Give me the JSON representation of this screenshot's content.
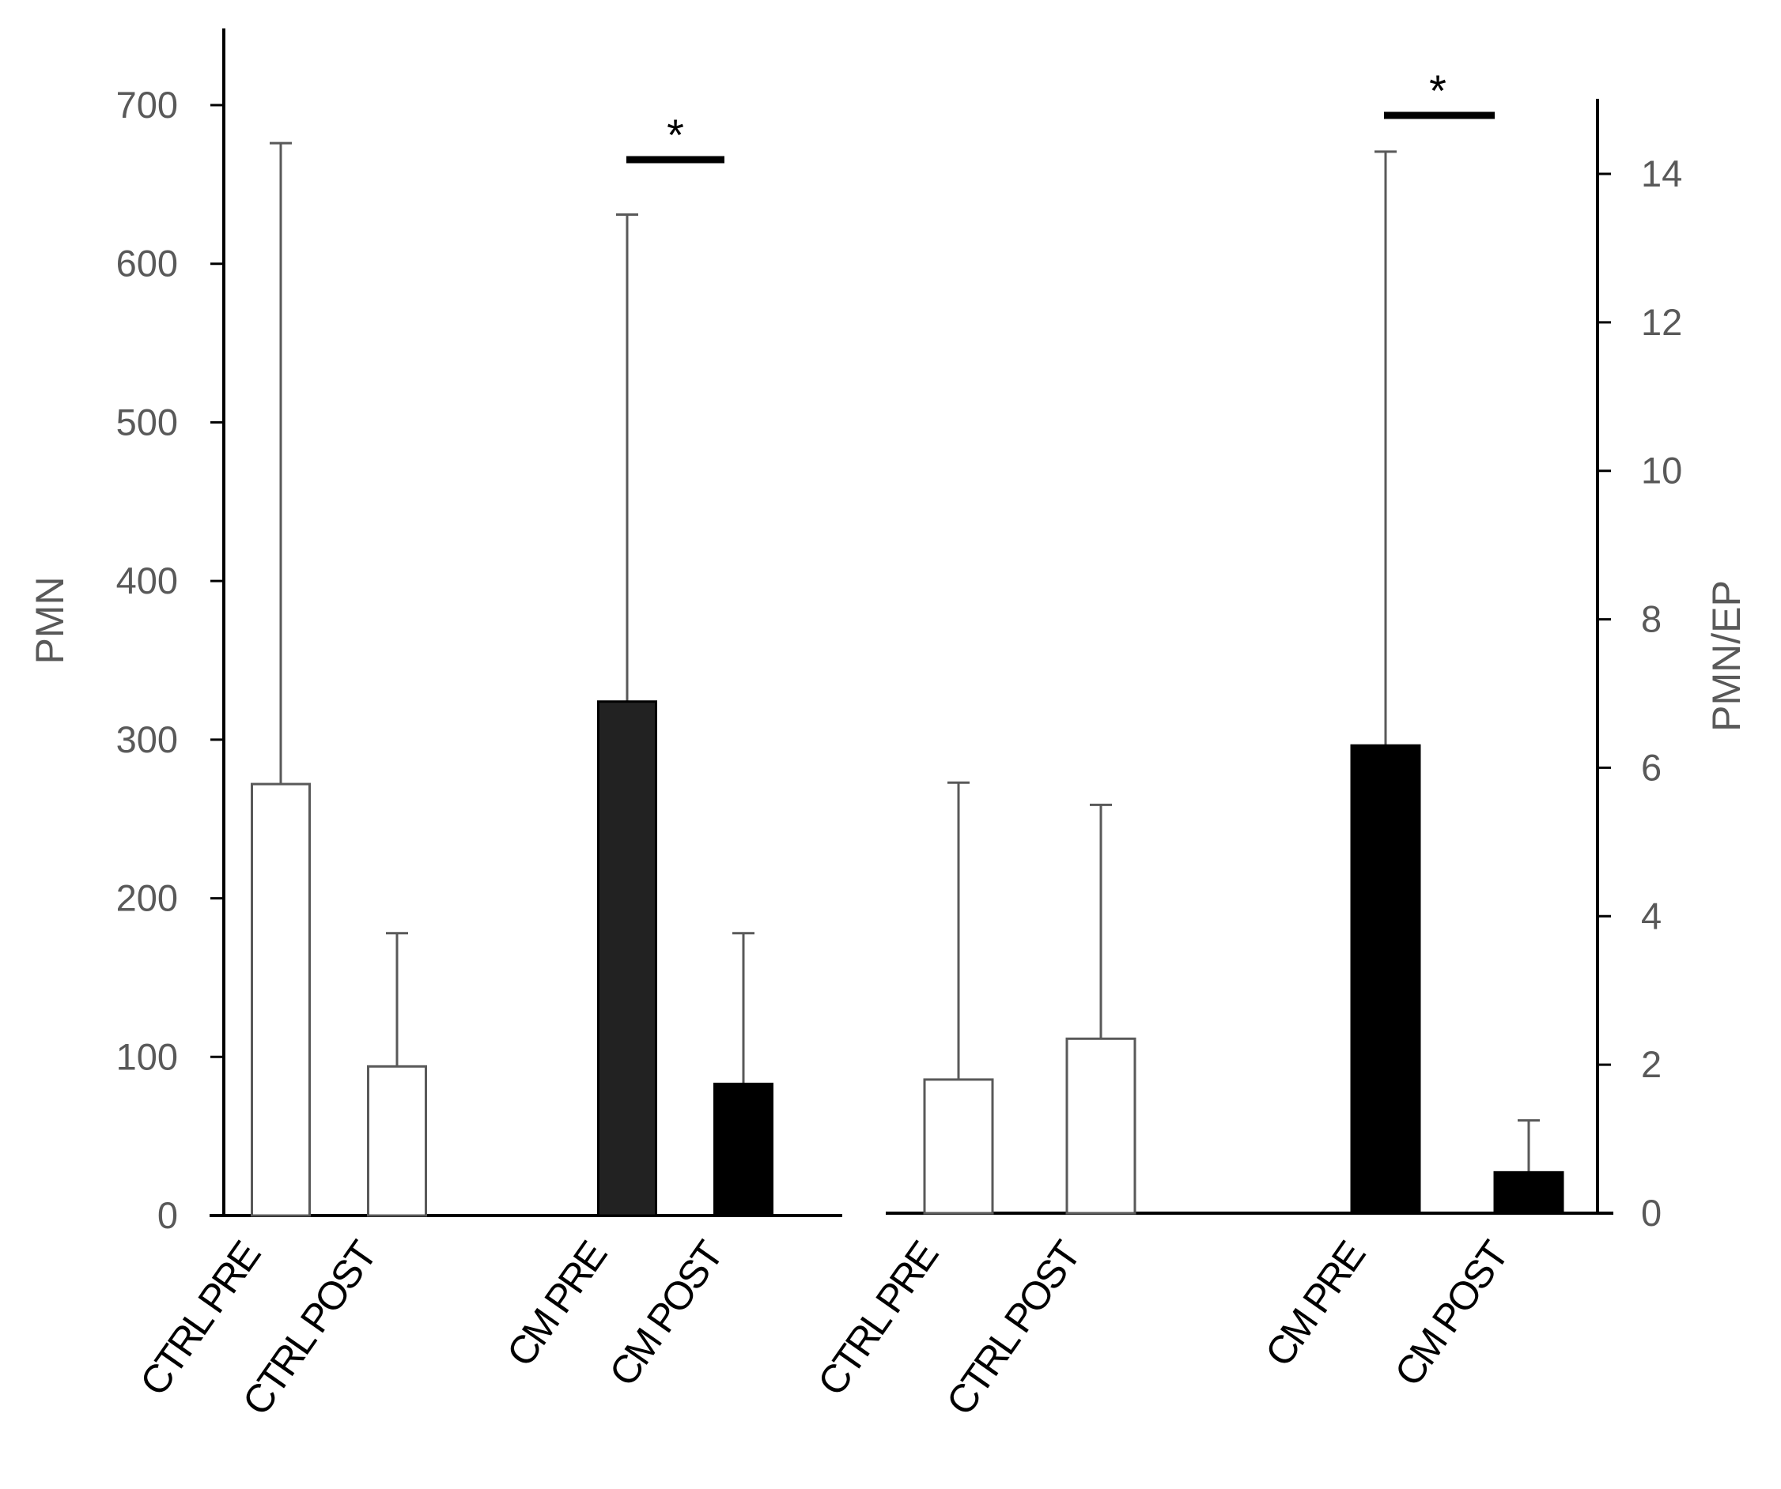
{
  "chart_data": [
    {
      "type": "bar",
      "panel": "left",
      "ylabel": "PMN",
      "ylim": [
        0,
        700
      ],
      "yticks": [
        0,
        100,
        200,
        300,
        400,
        500,
        600,
        700
      ],
      "categories": [
        "CTRL PRE",
        "CTRL POST",
        "CM PRE",
        "CM POST"
      ],
      "values": [
        272,
        94,
        324,
        83
      ],
      "error_upper": [
        676,
        178,
        631,
        178
      ],
      "fills": [
        "#ffffff",
        "#ffffff",
        "#222222",
        "#000000"
      ],
      "significance": [
        {
          "between": [
            "CM PRE",
            "CM POST"
          ],
          "label": "*"
        }
      ]
    },
    {
      "type": "bar",
      "panel": "right",
      "ylabel": "PMN/EP",
      "ylim": [
        0,
        14
      ],
      "yticks": [
        0,
        2,
        4,
        6,
        8,
        10,
        12,
        14
      ],
      "categories": [
        "CTRL PRE",
        "CTRL POST",
        "CM PRE",
        "CM POST"
      ],
      "values": [
        1.8,
        2.35,
        6.3,
        0.55
      ],
      "error_upper": [
        5.8,
        5.5,
        14.3,
        1.25
      ],
      "fills": [
        "#ffffff",
        "#ffffff",
        "#000000",
        "#000000"
      ],
      "significance": [
        {
          "between": [
            "CM PRE",
            "CM POST"
          ],
          "label": "*"
        }
      ]
    }
  ],
  "colors": {
    "axis": "#000000",
    "tick_text": "#595959",
    "bar_outline": "#595959",
    "error_bar": "#595959"
  }
}
